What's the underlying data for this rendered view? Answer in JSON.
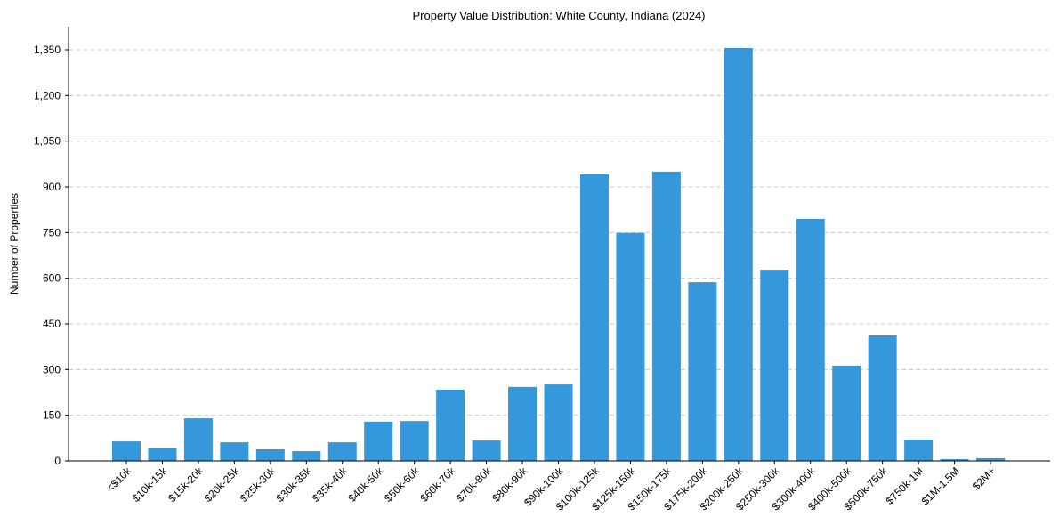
{
  "chart_data": {
    "type": "bar",
    "title": "Property Value Distribution: White County, Indiana (2024)",
    "xlabel": "",
    "ylabel": "Number of Properties",
    "ylim": [
      0,
      1420
    ],
    "yticks": [
      0,
      150,
      300,
      450,
      600,
      750,
      900,
      1050,
      1200,
      1350
    ],
    "ytick_labels": [
      "0",
      "150",
      "300",
      "450",
      "600",
      "750",
      "900",
      "1,050",
      "1,200",
      "1,350"
    ],
    "grid": "y-dashed",
    "bar_color": "#3498db",
    "categories": [
      "<$10k",
      "$10k-15k",
      "$15k-20k",
      "$20k-25k",
      "$25k-30k",
      "$30k-35k",
      "$35k-40k",
      "$40k-50k",
      "$50k-60k",
      "$60k-70k",
      "$70k-80k",
      "$80k-90k",
      "$90k-100k",
      "$100k-125k",
      "$125k-150k",
      "$150k-175k",
      "$175k-200k",
      "$200k-250k",
      "$250k-300k",
      "$300k-400k",
      "$400k-500k",
      "$500k-750k",
      "$750k-1M",
      "$1M-1.5M",
      "$2M+"
    ],
    "values": [
      64,
      41,
      140,
      61,
      38,
      32,
      61,
      129,
      131,
      234,
      67,
      243,
      251,
      941,
      749,
      950,
      587,
      1356,
      628,
      795,
      313,
      412,
      70,
      6,
      9
    ]
  }
}
